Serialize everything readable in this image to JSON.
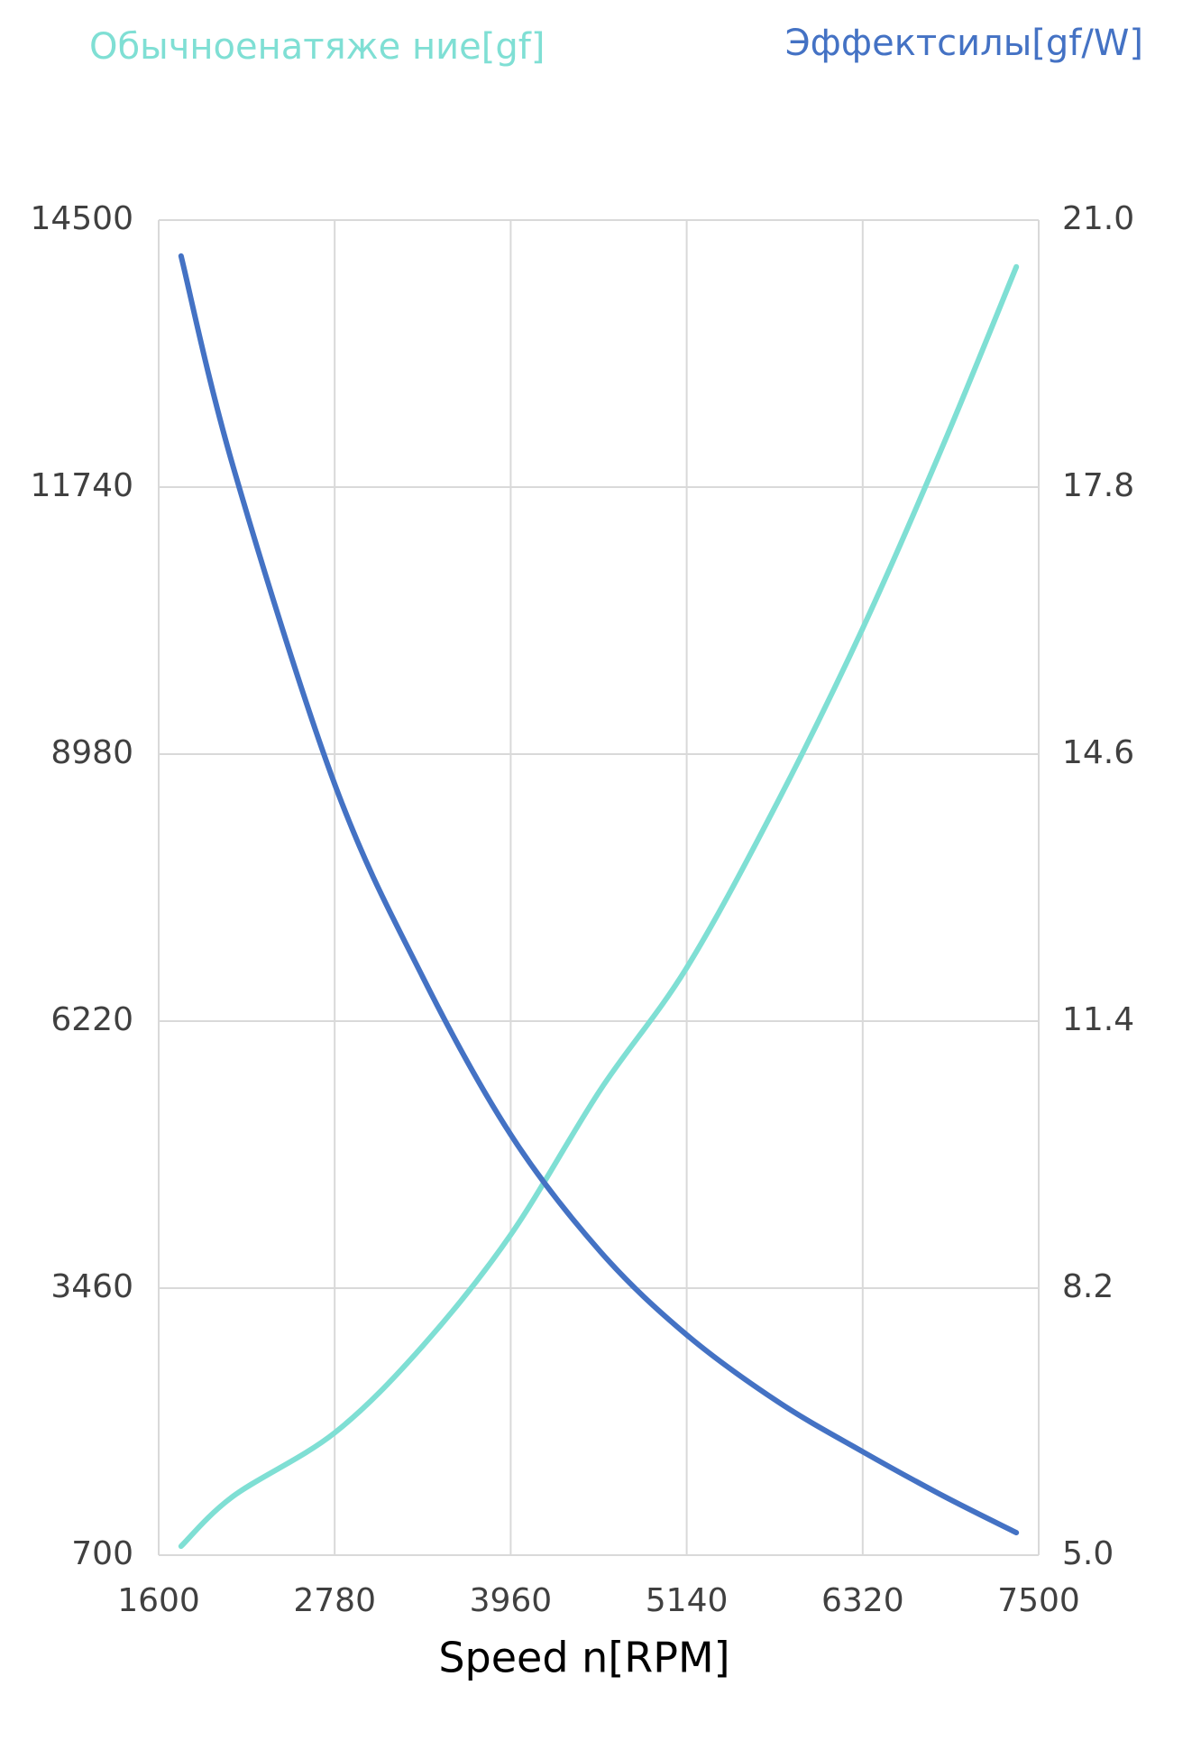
{
  "chart_data": {
    "type": "line",
    "legend": "top",
    "grid": true,
    "x_label": "Speed n[RPM]",
    "x": [
      1750,
      2100,
      2780,
      3370,
      3960,
      4560,
      5140,
      5750,
      6320,
      6860,
      7350
    ],
    "xlim": [
      1600,
      7500
    ],
    "xticks": [
      1600,
      2780,
      3960,
      5140,
      6320,
      7500
    ],
    "ylim": [
      700,
      14500
    ],
    "yticks": [
      700,
      3460,
      6220,
      8980,
      11740,
      14500
    ],
    "y2lim": [
      5,
      21
    ],
    "y2ticks": [
      {
        "value": 5,
        "label": "5.0"
      },
      8.2,
      11.4,
      14.6,
      17.8,
      {
        "value": 21,
        "label": "21.0"
      }
    ],
    "series": [
      {
        "name": "Обычноенатяже ние[gf]",
        "color": "#7fdfd4",
        "values": [
          792,
          1310,
          1965,
          2862,
          4012,
          5507,
          6772,
          8487,
          10280,
          12177,
          14017
        ]
      },
      {
        "name": "Эффектсилы[gf/W]",
        "color": "#4472c4",
        "axis": "y2",
        "values": [
          20.57,
          18.04,
          14.24,
          11.93,
          10.04,
          8.64,
          7.64,
          6.84,
          6.24,
          5.71,
          5.27
        ]
      }
    ]
  }
}
